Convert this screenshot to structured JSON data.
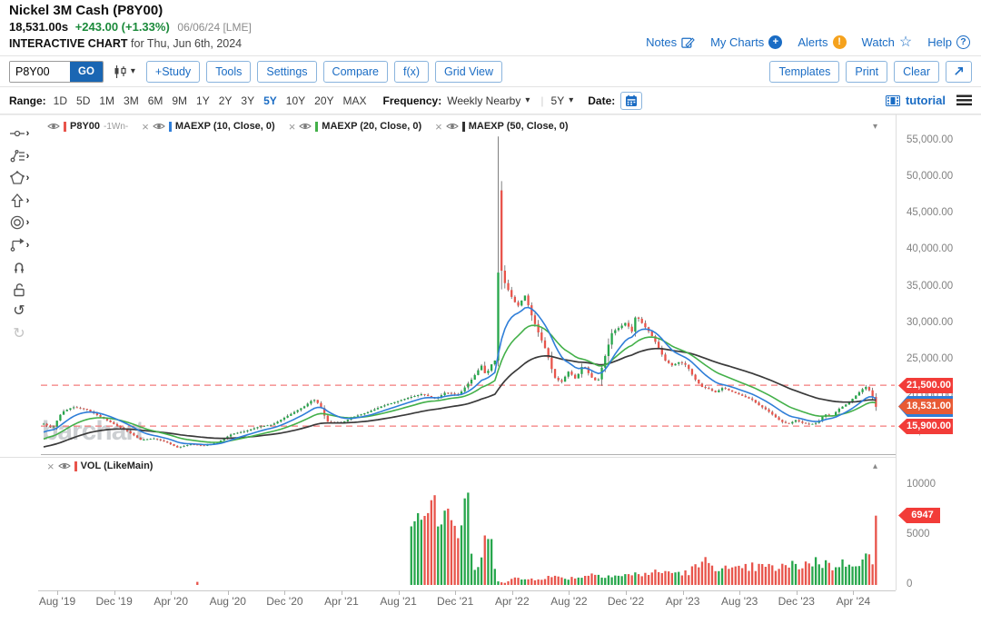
{
  "header": {
    "title": "Nickel 3M Cash (P8Y00)",
    "last_price": "18,531.00s",
    "change": "+243.00 (+1.33%)",
    "quote_date": "06/06/24 [LME]",
    "chart_kind": "INTERACTIVE CHART",
    "chart_for": "for Thu, Jun 6th, 2024",
    "links": [
      {
        "label": "Notes",
        "icon": "pencil-square-icon"
      },
      {
        "label": "My Charts",
        "icon": "plus-circle-icon"
      },
      {
        "label": "Alerts",
        "icon": "alert-circle-icon"
      },
      {
        "label": "Watch",
        "icon": "star-icon"
      },
      {
        "label": "Help",
        "icon": "question-circle-icon"
      }
    ]
  },
  "toolbar": {
    "symbol_value": "P8Y00",
    "go_label": "GO",
    "study_buttons": [
      "+Study",
      "Tools",
      "Settings",
      "Compare",
      "f(x)",
      "Grid View"
    ],
    "right_buttons": [
      "Templates",
      "Print",
      "Clear"
    ]
  },
  "range_row": {
    "range_label": "Range:",
    "ranges": [
      "1D",
      "5D",
      "1M",
      "3M",
      "6M",
      "9M",
      "1Y",
      "2Y",
      "3Y",
      "5Y",
      "10Y",
      "20Y",
      "MAX"
    ],
    "selected_range": "5Y",
    "frequency_label": "Frequency:",
    "frequency_value": "Weekly Nearby",
    "period_value": "5Y",
    "date_label": "Date:",
    "tutorial_label": "tutorial"
  },
  "legend": {
    "main_items": [
      {
        "label": "P8Y00",
        "suffix": "-1Wn-",
        "color": "#e8544b",
        "closable": false
      },
      {
        "label": "MAEXP (10, Close, 0)",
        "suffix": "",
        "color": "#2f7ed8",
        "closable": true
      },
      {
        "label": "MAEXP (20, Close, 0)",
        "suffix": "",
        "color": "#43b049",
        "closable": true
      },
      {
        "label": "MAEXP (50, Close, 0)",
        "suffix": "",
        "color": "#333333",
        "closable": true
      }
    ],
    "volume_item": {
      "label": "VOL (LikeMain)",
      "color": "#e8544b"
    }
  },
  "watermark": "barchart",
  "chart_data": {
    "type": "candlestick_with_volume",
    "symbol": "P8Y00",
    "frequency": "Weekly Nearby",
    "range": "5Y",
    "y_axis": {
      "min": 12050,
      "max": 55870,
      "tick_values": [
        55000,
        50000,
        45000,
        40000,
        35000,
        30000,
        25000,
        20000,
        15000
      ],
      "tick_labels": [
        "55,000.00",
        "50,000.00",
        "45,000.00",
        "40,000.00",
        "35,000.00",
        "30,000.00",
        "25,000.00",
        "20,000.00",
        "15,000.00"
      ]
    },
    "x_labels": [
      "Aug '19",
      "Dec '19",
      "Apr '20",
      "Aug '20",
      "Dec '20",
      "Apr '21",
      "Aug '21",
      "Dec '21",
      "Apr '22",
      "Aug '22",
      "Dec '22",
      "Apr '23",
      "Aug '23",
      "Dec '23",
      "Apr '24"
    ],
    "levels": [
      {
        "value": 21500,
        "label": "21,500.00"
      },
      {
        "value": 15900,
        "label": "15,900.00"
      }
    ],
    "last": {
      "value": 18531,
      "label": "18,531.00"
    },
    "volume_axis": {
      "ticks": [
        {
          "value": 10000,
          "label": "10000"
        },
        {
          "value": 5000,
          "label": "5000"
        },
        {
          "value": 0,
          "label": "0"
        }
      ],
      "last": {
        "value": 6947,
        "label": "6947"
      }
    },
    "price_anchors": [
      [
        3,
        16200
      ],
      [
        13,
        15600
      ],
      [
        23,
        17800
      ],
      [
        35,
        18500
      ],
      [
        50,
        18200
      ],
      [
        65,
        17200
      ],
      [
        80,
        16200
      ],
      [
        95,
        15200
      ],
      [
        110,
        14000
      ],
      [
        125,
        14200
      ],
      [
        140,
        13600
      ],
      [
        150,
        12950
      ],
      [
        165,
        13400
      ],
      [
        180,
        13200
      ],
      [
        195,
        13700
      ],
      [
        210,
        14800
      ],
      [
        225,
        15200
      ],
      [
        240,
        15800
      ],
      [
        255,
        16100
      ],
      [
        273,
        17400
      ],
      [
        290,
        18600
      ],
      [
        300,
        19600
      ],
      [
        307,
        18800
      ],
      [
        315,
        16500
      ],
      [
        330,
        16300
      ],
      [
        345,
        17200
      ],
      [
        360,
        17800
      ],
      [
        375,
        18600
      ],
      [
        390,
        19200
      ],
      [
        405,
        19800
      ],
      [
        420,
        20300
      ],
      [
        435,
        19600
      ],
      [
        445,
        20500
      ],
      [
        460,
        20200
      ],
      [
        475,
        22400
      ],
      [
        485,
        24200
      ],
      [
        490,
        22800
      ],
      [
        495,
        24200
      ],
      [
        500,
        24900
      ],
      [
        503.5,
        37000
      ],
      [
        507.2,
        37200
      ],
      [
        510.8,
        35500
      ],
      [
        519,
        33400
      ],
      [
        525,
        32300
      ],
      [
        533,
        33800
      ],
      [
        541,
        30800
      ],
      [
        549,
        28300
      ],
      [
        557,
        26000
      ],
      [
        565,
        22600
      ],
      [
        573,
        21900
      ],
      [
        581,
        23400
      ],
      [
        589,
        22300
      ],
      [
        597,
        24400
      ],
      [
        605,
        22700
      ],
      [
        613,
        21900
      ],
      [
        621,
        25400
      ],
      [
        629,
        28800
      ],
      [
        637,
        29400
      ],
      [
        645,
        30200
      ],
      [
        650,
        28500
      ],
      [
        655,
        31100
      ],
      [
        663,
        29800
      ],
      [
        671,
        28600
      ],
      [
        679,
        26900
      ],
      [
        687,
        24900
      ],
      [
        695,
        24200
      ],
      [
        703,
        24700
      ],
      [
        711,
        24200
      ],
      [
        719,
        22500
      ],
      [
        727,
        21300
      ],
      [
        735,
        21000
      ],
      [
        743,
        20500
      ],
      [
        751,
        21200
      ],
      [
        759,
        20700
      ],
      [
        767,
        20300
      ],
      [
        775,
        19900
      ],
      [
        783,
        19500
      ],
      [
        791,
        18700
      ],
      [
        799,
        18100
      ],
      [
        807,
        17300
      ],
      [
        815,
        16500
      ],
      [
        823,
        16200
      ],
      [
        831,
        16700
      ],
      [
        839,
        16300
      ],
      [
        847,
        16100
      ],
      [
        855,
        16400
      ],
      [
        863,
        17500
      ],
      [
        871,
        17300
      ],
      [
        879,
        18300
      ],
      [
        887,
        18900
      ],
      [
        895,
        19800
      ],
      [
        903,
        20800
      ],
      [
        908,
        21300
      ],
      [
        912,
        20800
      ],
      [
        916,
        19800
      ],
      [
        920,
        18531
      ]
    ],
    "overrides": [
      {
        "x": 503.5,
        "high": 55600
      },
      {
        "x": 507.2,
        "open": 48200
      }
    ],
    "volume_anchors": [
      [
        0,
        0
      ],
      [
        170,
        0
      ],
      [
        172.5,
        380
      ],
      [
        175,
        0
      ],
      [
        405,
        60
      ],
      [
        408,
        8100
      ],
      [
        413,
        9100
      ],
      [
        418,
        6700
      ],
      [
        424,
        7700
      ],
      [
        430,
        11200
      ],
      [
        434,
        8800
      ],
      [
        440,
        6500
      ],
      [
        447,
        8700
      ],
      [
        454,
        6100
      ],
      [
        458,
        4200
      ],
      [
        464,
        7600
      ],
      [
        470,
        7700
      ],
      [
        474,
        2700
      ],
      [
        480,
        1300
      ],
      [
        490,
        4500
      ],
      [
        497,
        3800
      ],
      [
        503,
        450
      ],
      [
        512,
        250
      ],
      [
        520,
        650
      ],
      [
        535,
        550
      ],
      [
        560,
        800
      ],
      [
        585,
        700
      ],
      [
        610,
        1100
      ],
      [
        635,
        900
      ],
      [
        660,
        1100
      ],
      [
        685,
        1300
      ],
      [
        710,
        1200
      ],
      [
        733,
        2300
      ],
      [
        760,
        1400
      ],
      [
        785,
        1800
      ],
      [
        810,
        1700
      ],
      [
        835,
        2000
      ],
      [
        855,
        2400
      ],
      [
        870,
        1900
      ],
      [
        885,
        2100
      ],
      [
        895,
        2500
      ],
      [
        905,
        2300
      ],
      [
        912,
        3300
      ],
      [
        916,
        1800
      ],
      [
        920,
        6947
      ]
    ],
    "ma_periods": [
      10,
      20,
      50
    ],
    "colors": {
      "up": "#26a64b",
      "down": "#e8544b",
      "wick": "#4a4a4a",
      "ma10": "#2f7ed8",
      "ma20": "#43b049",
      "ma50": "#3a3a3a",
      "level": "#f47b7b",
      "tag_red": "#f23c38",
      "tag_orange": "#e85a34",
      "tag_blue": "#2f7ed8",
      "axis_text": "#828282"
    }
  }
}
